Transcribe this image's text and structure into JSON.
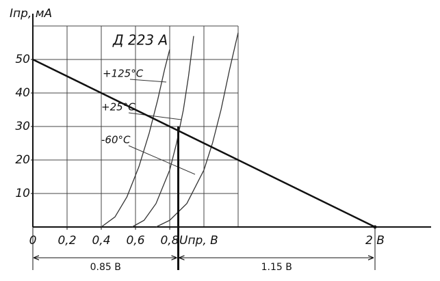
{
  "chart_data": {
    "type": "line",
    "title": "Д 223 А",
    "y_label": "Iпр, мА",
    "x_label": "Uпр, В",
    "xlim": [
      0,
      2.3
    ],
    "ylim": [
      0,
      60
    ],
    "xticks": [
      {
        "value": 0,
        "label": "0"
      },
      {
        "value": 0.2,
        "label": "0,2"
      },
      {
        "value": 0.4,
        "label": "0,4"
      },
      {
        "value": 0.6,
        "label": "0,6"
      },
      {
        "value": 0.8,
        "label": "0,8"
      },
      {
        "value": 2,
        "label": "2 В"
      }
    ],
    "yticks": [
      10,
      20,
      30,
      40,
      50
    ],
    "x_grid": [
      0.2,
      0.4,
      0.6,
      0.8,
      1.0,
      1.2
    ],
    "y_grid": [
      10,
      20,
      30,
      40,
      50,
      60
    ],
    "series": [
      {
        "name": "+125°C",
        "color": "#333",
        "x": [
          0.4,
          0.48,
          0.55,
          0.62,
          0.68,
          0.73,
          0.77,
          0.8
        ],
        "values": [
          0,
          3,
          9,
          18,
          28,
          38,
          47,
          53
        ]
      },
      {
        "name": "+25°C",
        "color": "#333",
        "x": [
          0.58,
          0.65,
          0.72,
          0.8,
          0.84,
          0.88,
          0.91,
          0.94
        ],
        "values": [
          0,
          2,
          7,
          17,
          25,
          35,
          45,
          57
        ]
      },
      {
        "name": "-60°C",
        "color": "#333",
        "x": [
          0.72,
          0.8,
          0.9,
          1.0,
          1.05,
          1.1,
          1.15,
          1.2
        ],
        "values": [
          0,
          2,
          7,
          17,
          25,
          35,
          47,
          58
        ]
      }
    ],
    "load_line": {
      "x": [
        0,
        2
      ],
      "values": [
        50,
        0
      ]
    },
    "operating_point": {
      "x": 0.85,
      "value": 30
    },
    "dimensions": [
      {
        "from": 0,
        "to": 0.85,
        "label": "0.85 В"
      },
      {
        "from": 0.85,
        "to": 2,
        "label": "1.15 В"
      }
    ]
  }
}
